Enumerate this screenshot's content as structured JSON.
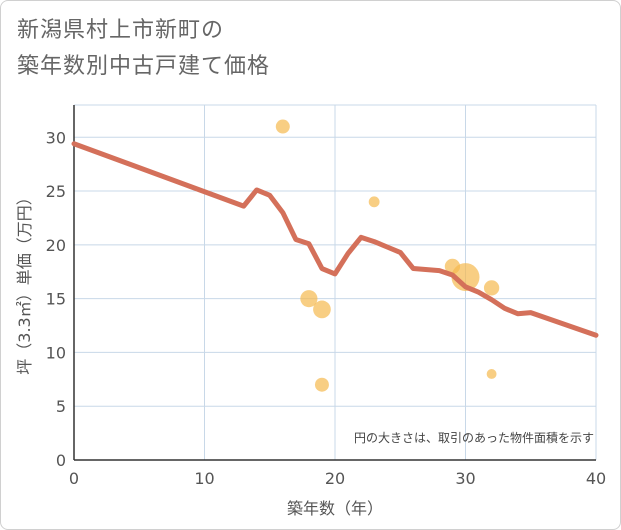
{
  "title_lines": [
    "新潟県村上市新町の",
    "築年数別中古戸建て価格"
  ],
  "chart_data": {
    "type": "scatter",
    "title": "新潟県村上市新町の築年数別中古戸建て価格",
    "xlabel": "築年数（年）",
    "ylabel": "坪（3.3㎡）単価（万円）",
    "xlim": [
      0,
      40
    ],
    "ylim": [
      0,
      33
    ],
    "xticks": [
      0,
      10,
      20,
      30,
      40
    ],
    "yticks": [
      0,
      5,
      10,
      15,
      20,
      25,
      30
    ],
    "grid": true,
    "note": "円の大きさは、取引のあった物件面積を示す",
    "colors": {
      "bubble": "#f5b94e",
      "line": "#d4705a",
      "grid": "#c8d8e8",
      "axis": "#333333"
    },
    "points": [
      {
        "x": 16,
        "y": 31,
        "size": 1
      },
      {
        "x": 23,
        "y": 24,
        "size": 0.6
      },
      {
        "x": 18,
        "y": 15,
        "size": 1.5
      },
      {
        "x": 19,
        "y": 14,
        "size": 1.6
      },
      {
        "x": 19,
        "y": 7,
        "size": 1
      },
      {
        "x": 29,
        "y": 18,
        "size": 1.2
      },
      {
        "x": 30,
        "y": 17,
        "size": 4
      },
      {
        "x": 32,
        "y": 16,
        "size": 1.2
      },
      {
        "x": 32,
        "y": 8,
        "size": 0.5
      }
    ],
    "trend_line": {
      "x": [
        0,
        13,
        14,
        15,
        16,
        17,
        18,
        19,
        20,
        21,
        22,
        23,
        24,
        25,
        26,
        28,
        29,
        30,
        31,
        32,
        33,
        34,
        35,
        40
      ],
      "y": [
        29.4,
        23.6,
        25.1,
        24.6,
        23,
        20.5,
        20.1,
        17.8,
        17.3,
        19.2,
        20.7,
        20.3,
        19.8,
        19.3,
        17.8,
        17.6,
        17.2,
        16.1,
        15.6,
        14.9,
        14.1,
        13.6,
        13.7,
        11.6
      ]
    }
  }
}
